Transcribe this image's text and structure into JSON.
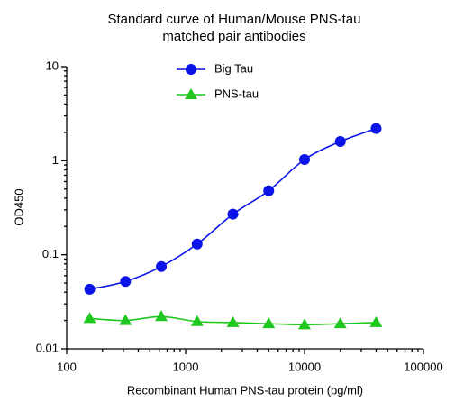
{
  "chart_data": {
    "type": "scatter",
    "title": [
      "Standard curve of Human/Mouse PNS-tau",
      "matched pair antibodies"
    ],
    "x_label": "Recombinant Human PNS-tau protein (pg/ml)",
    "y_label": "OD450",
    "x_log": true,
    "y_log": true,
    "xlim": [
      100,
      100000
    ],
    "xticks": [
      100,
      1000,
      10000,
      100000
    ],
    "ylim": [
      0.01,
      10
    ],
    "yticks": [
      0.01,
      0.1,
      1,
      10
    ],
    "x": [
      156.25,
      312.5,
      625,
      1250,
      2500,
      5000,
      10000,
      20000,
      40000
    ],
    "series": [
      {
        "name": "Big Tau",
        "color": "#0a14e6",
        "marker": "circle",
        "values": [
          0.043,
          0.052,
          0.075,
          0.13,
          0.27,
          0.48,
          1.03,
          1.6,
          2.2
        ]
      },
      {
        "name": "PNS-tau",
        "color": "#1ec81e",
        "marker": "triangle",
        "values": [
          0.021,
          0.02,
          0.022,
          0.0195,
          0.019,
          0.0185,
          0.018,
          0.0185,
          0.019
        ]
      }
    ]
  }
}
